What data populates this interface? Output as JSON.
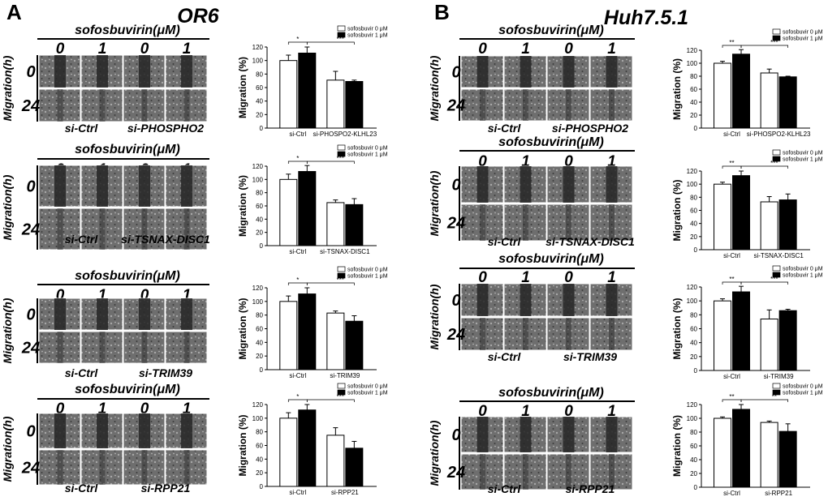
{
  "panels": [
    {
      "letter": "A",
      "title": "OR6",
      "sofo_label": "sofosbuvirin(μM)",
      "dose_labels": [
        "0",
        "1",
        "0",
        "1"
      ],
      "time_labels": [
        "0",
        "24"
      ],
      "migration_label": "Migration(h)",
      "rows": [
        {
          "groups": [
            "si-Ctrl",
            "si-PHOSPHO2"
          ]
        },
        {
          "groups": [
            "si-Ctrl",
            "si-TSNAX-DISC1"
          ]
        },
        {
          "groups": [
            "si-Ctrl",
            "si-TRIM39"
          ]
        },
        {
          "groups": [
            "si-Ctrl",
            "si-RPP21"
          ]
        }
      ]
    },
    {
      "letter": "B",
      "title": "Huh7.5.1",
      "sofo_label": "sofosbuvirin(μM)",
      "dose_labels": [
        "0",
        "1",
        "0",
        "1"
      ],
      "time_labels": [
        "0",
        "24"
      ],
      "migration_label": "Migration(h)",
      "rows": [
        {
          "groups": [
            "si-Ctrl",
            "si-PHOSPHO2"
          ]
        },
        {
          "groups": [
            "si-Ctrl",
            "si-TSNAX-DISC1"
          ]
        },
        {
          "groups": [
            "si-Ctrl",
            "si-TRIM39"
          ]
        },
        {
          "groups": [
            "si-Ctrl",
            "si-RPP21"
          ]
        }
      ]
    }
  ],
  "chart_data": [
    {
      "panel": "A",
      "type": "bar",
      "ylabel": "Migration (%)",
      "ylim": [
        0,
        120
      ],
      "yticks": [
        0,
        20,
        40,
        60,
        80,
        100,
        120
      ],
      "categories": [
        "si-Ctrl",
        "si-PHOSPO2-KLHL23"
      ],
      "series": [
        {
          "name": "sofosbuvir 0 μM",
          "color": "#ffffff",
          "values": [
            100,
            71
          ],
          "errors": [
            8,
            13
          ]
        },
        {
          "name": "sofosbuvir 1 μM",
          "color": "#000000",
          "values": [
            111,
            69
          ],
          "errors": [
            9,
            2
          ]
        }
      ],
      "significance": [
        "*",
        "***"
      ]
    },
    {
      "panel": "A",
      "type": "bar",
      "ylabel": "Migration (%)",
      "ylim": [
        0,
        120
      ],
      "yticks": [
        0,
        20,
        40,
        60,
        80,
        100,
        120
      ],
      "categories": [
        "si-Ctrl",
        "si-TSNAX-DISC1"
      ],
      "series": [
        {
          "name": "sofosbuvir 0 μM",
          "color": "#ffffff",
          "values": [
            100,
            65
          ],
          "errors": [
            8,
            4
          ]
        },
        {
          "name": "sofosbuvir 1 μM",
          "color": "#000000",
          "values": [
            112,
            62
          ],
          "errors": [
            9,
            9
          ]
        }
      ],
      "significance": [
        "*",
        "***"
      ]
    },
    {
      "panel": "A",
      "type": "bar",
      "ylabel": "Migration (%)",
      "ylim": [
        0,
        120
      ],
      "yticks": [
        0,
        20,
        40,
        60,
        80,
        100,
        120
      ],
      "categories": [
        "si-Ctrl",
        "si-TRIM39"
      ],
      "series": [
        {
          "name": "sofosbuvir 0 μM",
          "color": "#ffffff",
          "values": [
            100,
            83
          ],
          "errors": [
            8,
            3
          ]
        },
        {
          "name": "sofosbuvir 1 μM",
          "color": "#000000",
          "values": [
            111,
            71
          ],
          "errors": [
            9,
            8
          ]
        }
      ],
      "significance": [
        "*",
        "***"
      ]
    },
    {
      "panel": "A",
      "type": "bar",
      "ylabel": "Migration (%)",
      "ylim": [
        0,
        120
      ],
      "yticks": [
        0,
        20,
        40,
        60,
        80,
        100,
        120
      ],
      "categories": [
        "si-Ctrl",
        "si-RPP21"
      ],
      "series": [
        {
          "name": "sofosbuvir 0 μM",
          "color": "#ffffff",
          "values": [
            100,
            75
          ],
          "errors": [
            8,
            11
          ]
        },
        {
          "name": "sofosbuvir 1 μM",
          "color": "#000000",
          "values": [
            112,
            56
          ],
          "errors": [
            8,
            10
          ]
        }
      ],
      "significance": [
        "*",
        "***"
      ]
    },
    {
      "panel": "B",
      "type": "bar",
      "ylabel": "Migration (%)",
      "ylim": [
        0,
        120
      ],
      "yticks": [
        0,
        20,
        40,
        60,
        80,
        100,
        120
      ],
      "categories": [
        "si-Ctrl",
        "si-PHOSPO2-KLHL23"
      ],
      "series": [
        {
          "name": "sofosbuvir 0 μM",
          "color": "#ffffff",
          "values": [
            100,
            85
          ],
          "errors": [
            3,
            6
          ]
        },
        {
          "name": "sofosbuvir 1 μM",
          "color": "#000000",
          "values": [
            114,
            79
          ],
          "errors": [
            7,
            1
          ]
        }
      ],
      "significance": [
        "**",
        "***"
      ]
    },
    {
      "panel": "B",
      "type": "bar",
      "ylabel": "Migration (%)",
      "ylim": [
        0,
        120
      ],
      "yticks": [
        0,
        20,
        40,
        60,
        80,
        100,
        120
      ],
      "categories": [
        "si-Ctrl",
        "si-TSNAX-DISC1"
      ],
      "series": [
        {
          "name": "sofosbuvir 0 μM",
          "color": "#ffffff",
          "values": [
            100,
            73
          ],
          "errors": [
            3,
            8
          ]
        },
        {
          "name": "sofosbuvir 1 μM",
          "color": "#000000",
          "values": [
            113,
            76
          ],
          "errors": [
            7,
            9
          ]
        }
      ],
      "significance": [
        "**",
        "***"
      ]
    },
    {
      "panel": "B",
      "type": "bar",
      "ylabel": "Migration (%)",
      "ylim": [
        0,
        120
      ],
      "yticks": [
        0,
        20,
        40,
        60,
        80,
        100,
        120
      ],
      "categories": [
        "si-Ctrl",
        "si-TRIM39"
      ],
      "series": [
        {
          "name": "sofosbuvir 0 μM",
          "color": "#ffffff",
          "values": [
            100,
            74
          ],
          "errors": [
            3,
            13
          ]
        },
        {
          "name": "sofosbuvir 1 μM",
          "color": "#000000",
          "values": [
            113,
            86
          ],
          "errors": [
            8,
            2
          ]
        }
      ],
      "significance": [
        "**",
        "***"
      ]
    },
    {
      "panel": "B",
      "type": "bar",
      "ylabel": "Migration (%)",
      "ylim": [
        0,
        120
      ],
      "yticks": [
        0,
        20,
        40,
        60,
        80,
        100,
        120
      ],
      "categories": [
        "si-Ctrl",
        "si-RPP21"
      ],
      "series": [
        {
          "name": "sofosbuvir 0 μM",
          "color": "#ffffff",
          "values": [
            100,
            94
          ],
          "errors": [
            2,
            2
          ]
        },
        {
          "name": "sofosbuvir 1 μM",
          "color": "#000000",
          "values": [
            113,
            81
          ],
          "errors": [
            7,
            11
          ]
        }
      ],
      "significance": [
        "**",
        "**"
      ]
    }
  ]
}
